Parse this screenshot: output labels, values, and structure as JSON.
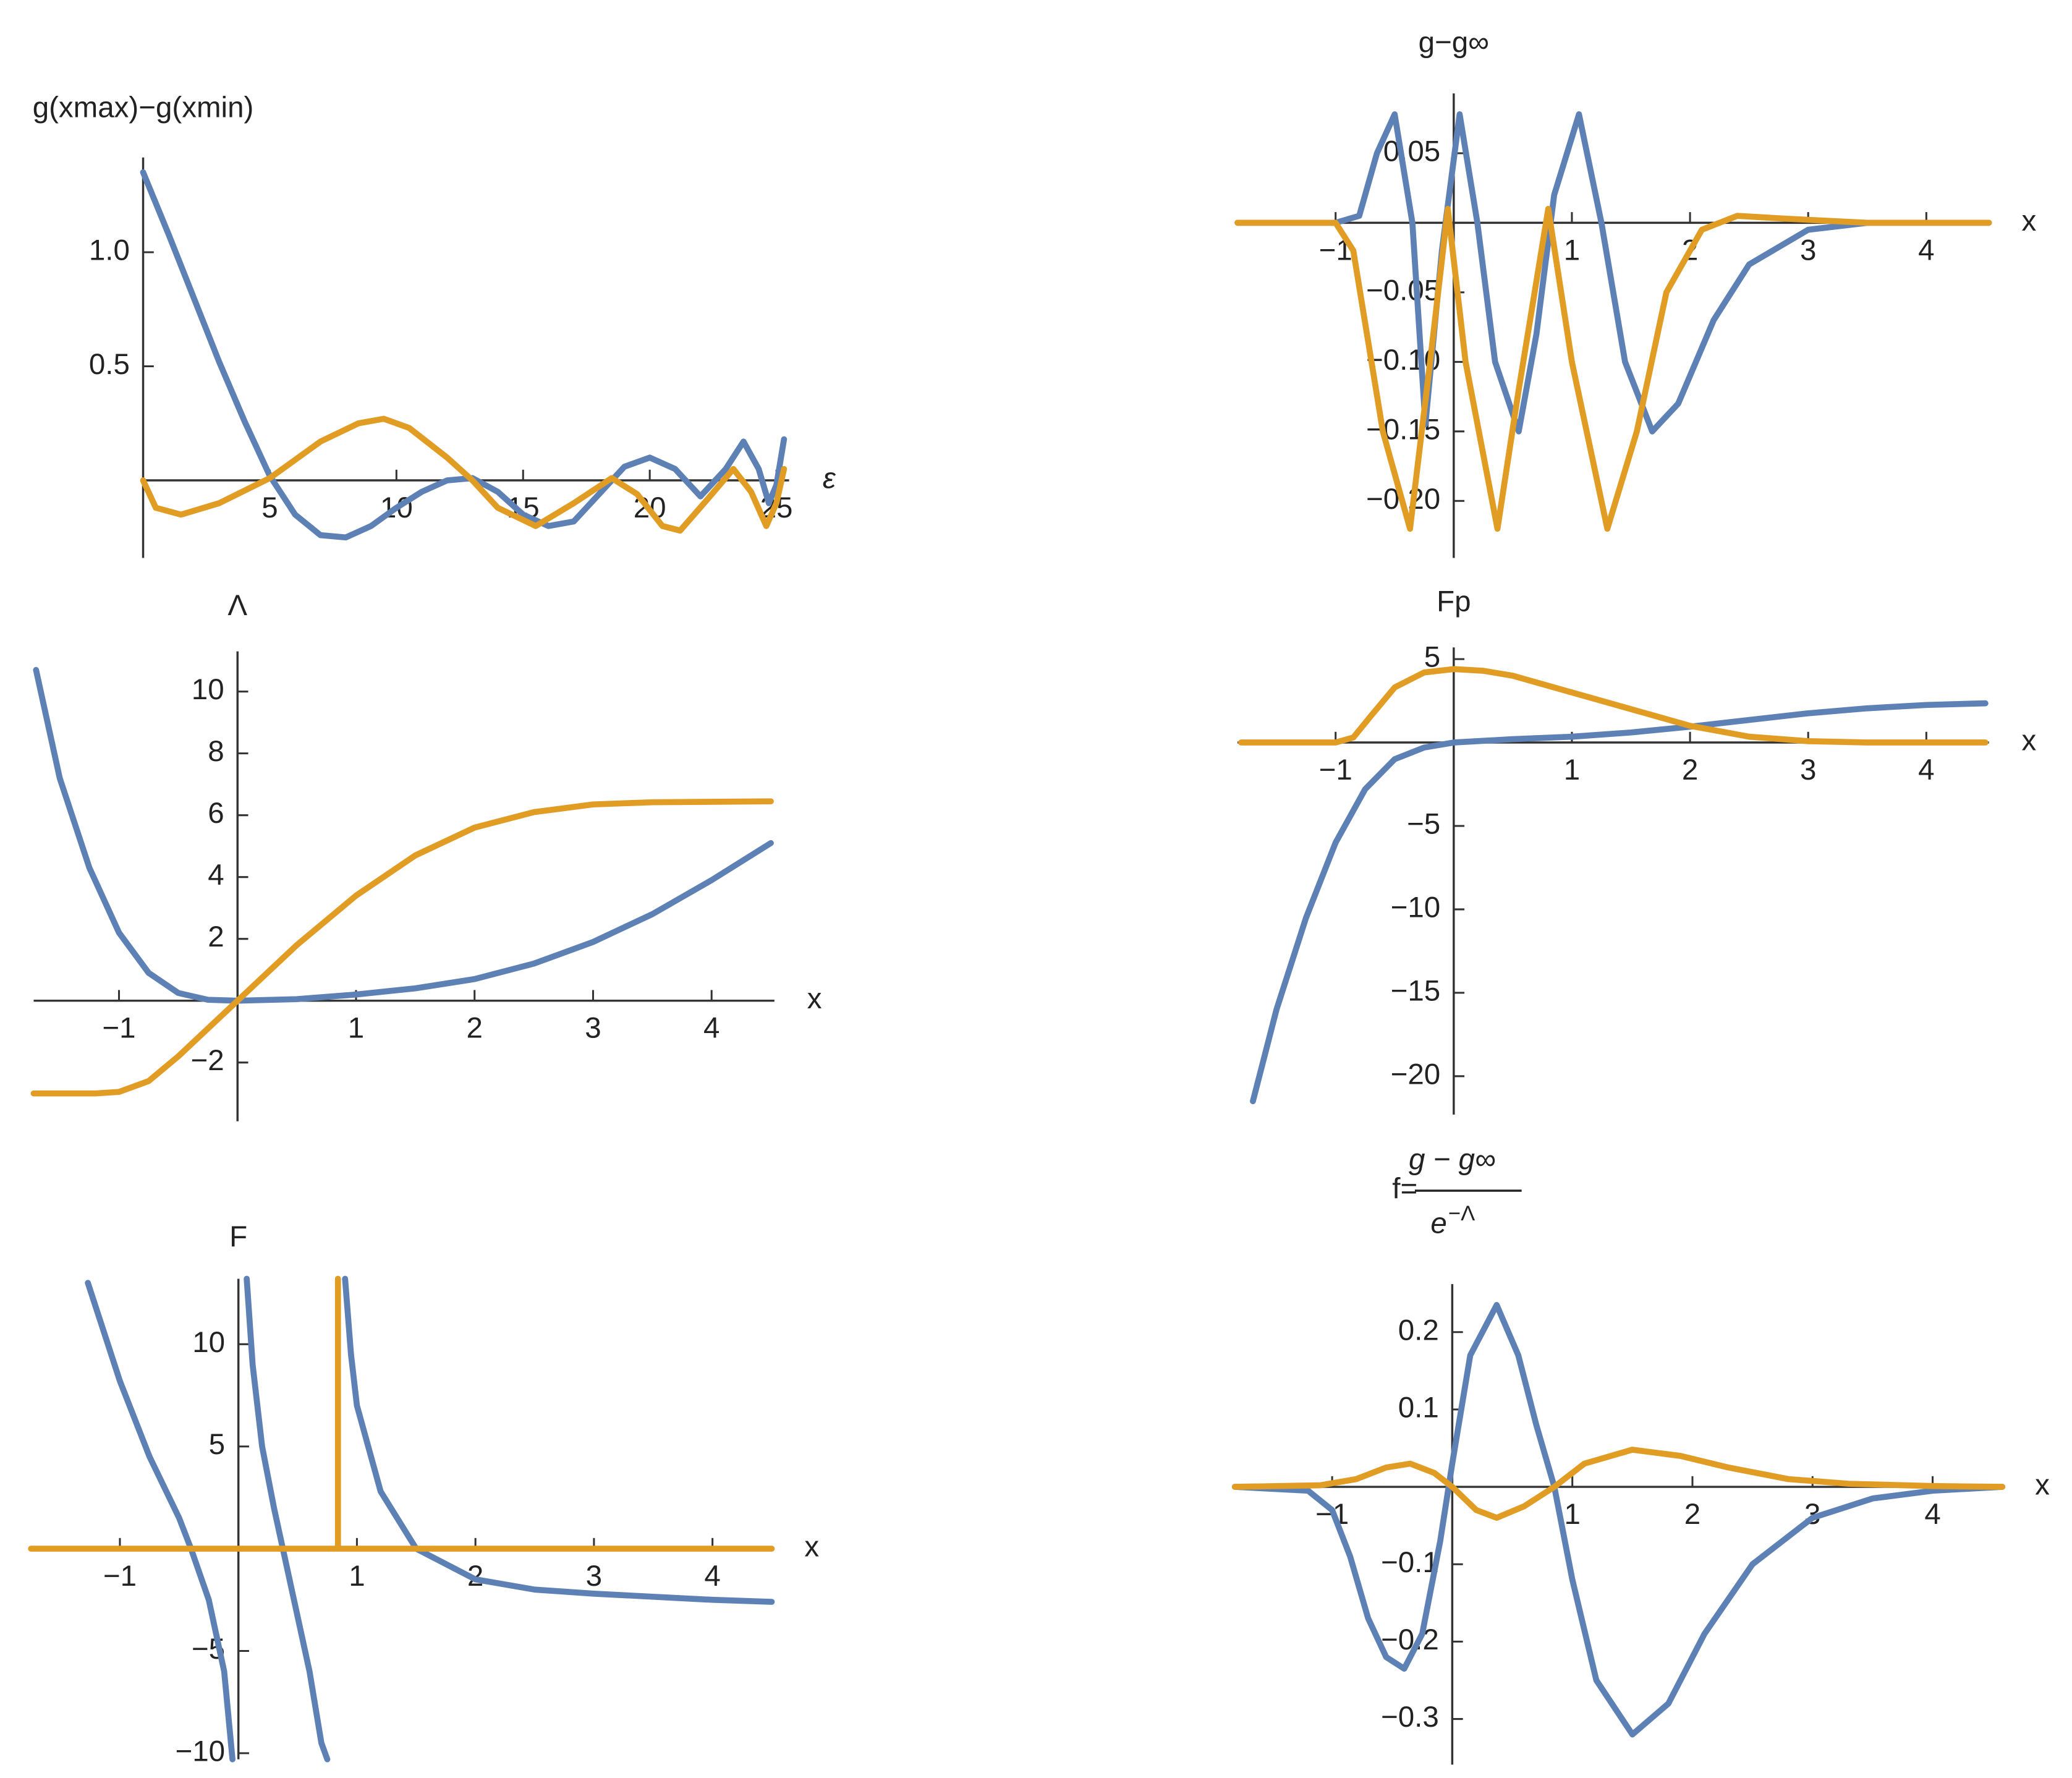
{
  "chart_data": [
    {
      "type": "line",
      "ylabel": "g(xmax)−g(xmin)",
      "xlabel": "ε",
      "xlim": [
        0,
        25.5
      ],
      "ylim": [
        -0.34,
        1.415
      ],
      "xticks": [
        5,
        10,
        15,
        20,
        25
      ],
      "yticks": [
        0.5,
        {
          "value": 1,
          "label": "1.0"
        }
      ],
      "series": [
        {
          "color": "#5e81b5",
          "x": [
            0,
            1,
            2,
            3,
            4,
            5,
            6,
            7,
            8,
            9,
            10,
            11,
            12,
            13,
            14,
            15,
            16,
            17,
            18,
            19,
            20,
            21,
            22,
            23,
            23.7,
            24.3,
            24.7,
            25,
            25.3
          ],
          "values": [
            1.35,
            1.08,
            0.8,
            0.52,
            0.26,
            0.02,
            -0.15,
            -0.24,
            -0.25,
            -0.2,
            -0.12,
            -0.05,
            0,
            0.01,
            -0.05,
            -0.15,
            -0.2,
            -0.18,
            -0.06,
            0.06,
            0.1,
            0.05,
            -0.07,
            0.05,
            0.17,
            0.05,
            -0.1,
            -0.02,
            0.18
          ]
        },
        {
          "color": "#e19c24",
          "x": [
            0,
            0.5,
            1.5,
            3,
            5,
            7,
            8.5,
            9.5,
            10.5,
            12,
            13,
            14,
            15.5,
            17,
            18.5,
            19.5,
            20.5,
            21.2,
            22.3,
            23.3,
            24,
            24.6,
            25,
            25.3
          ],
          "values": [
            0,
            -0.12,
            -0.15,
            -0.1,
            0.01,
            0.17,
            0.25,
            0.27,
            0.23,
            0.1,
            0,
            -0.12,
            -0.2,
            -0.1,
            0.01,
            -0.06,
            -0.2,
            -0.22,
            -0.08,
            0.05,
            -0.05,
            -0.2,
            -0.1,
            0.05
          ]
        }
      ]
    },
    {
      "type": "line",
      "ylabel": "g−g∞",
      "xlabel": "x",
      "xlim": [
        -1.83,
        4.53
      ],
      "ylim": [
        -0.241,
        0.093
      ],
      "xticks": [
        {
          "value": -1,
          "label": "−1"
        },
        1,
        2,
        3,
        4
      ],
      "yticks": [
        0.05,
        {
          "value": -0.05,
          "label": "−0.05"
        },
        {
          "value": -0.1,
          "label": "−0.10"
        },
        {
          "value": -0.15,
          "label": "−0.15"
        },
        {
          "value": -0.2,
          "label": "−0.20"
        }
      ],
      "series": [
        {
          "color": "#5e81b5",
          "x": [
            -1.83,
            -1,
            -0.8,
            -0.65,
            -0.5,
            -0.35,
            -0.24,
            -0.1,
            0.05,
            0.2,
            0.35,
            0.55,
            0.7,
            0.85,
            1.06,
            1.25,
            1.45,
            1.68,
            1.9,
            2.2,
            2.5,
            3,
            3.5,
            4.53
          ],
          "values": [
            0,
            0,
            0.005,
            0.05,
            0.078,
            0,
            -0.145,
            -0.02,
            0.078,
            0,
            -0.1,
            -0.15,
            -0.08,
            0.02,
            0.078,
            0,
            -0.1,
            -0.15,
            -0.13,
            -0.07,
            -0.03,
            -0.005,
            0,
            0
          ]
        },
        {
          "color": "#e19c24",
          "x": [
            -1.83,
            -1,
            -0.85,
            -0.6,
            -0.37,
            -0.2,
            -0.05,
            0.1,
            0.37,
            0.55,
            0.8,
            1,
            1.3,
            1.55,
            1.8,
            2.1,
            2.4,
            2.8,
            3.5,
            4.53
          ],
          "values": [
            0,
            0,
            -0.02,
            -0.15,
            -0.22,
            -0.1,
            0.01,
            -0.1,
            -0.22,
            -0.12,
            0.01,
            -0.1,
            -0.22,
            -0.15,
            -0.05,
            -0.005,
            0.005,
            0.003,
            0,
            0
          ]
        }
      ]
    },
    {
      "type": "line",
      "ylabel": "Λ",
      "xlabel": "x",
      "xlim": [
        -1.72,
        4.53
      ],
      "ylim": [
        -3.9,
        11.3
      ],
      "xticks": [
        {
          "value": -1,
          "label": "−1"
        },
        1,
        2,
        3,
        4
      ],
      "yticks": [
        {
          "value": -2,
          "label": "−2"
        },
        2,
        4,
        6,
        8,
        10
      ],
      "series": [
        {
          "color": "#5e81b5",
          "x": [
            -1.7,
            -1.5,
            -1.25,
            -1,
            -0.75,
            -0.5,
            -0.25,
            0,
            0.5,
            1,
            1.5,
            2,
            2.5,
            3,
            3.5,
            4,
            4.5
          ],
          "values": [
            10.7,
            7.2,
            4.3,
            2.2,
            0.9,
            0.25,
            0.03,
            0,
            0.05,
            0.2,
            0.4,
            0.7,
            1.2,
            1.9,
            2.8,
            3.9,
            5.1
          ]
        },
        {
          "color": "#e19c24",
          "x": [
            -1.72,
            -1.2,
            -1,
            -0.75,
            -0.5,
            -0.25,
            0,
            0.5,
            1,
            1.5,
            2,
            2.5,
            3,
            3.5,
            4.5
          ],
          "values": [
            -3,
            -3,
            -2.95,
            -2.6,
            -1.8,
            -0.9,
            0,
            1.8,
            3.4,
            4.7,
            5.6,
            6.1,
            6.35,
            6.42,
            6.45
          ]
        }
      ]
    },
    {
      "type": "line",
      "ylabel": "Fp",
      "xlabel": "x",
      "xlim": [
        -1.83,
        4.53
      ],
      "ylim": [
        -22.3,
        5.7
      ],
      "xticks": [
        {
          "value": -1,
          "label": "−1"
        },
        1,
        2,
        3,
        4
      ],
      "yticks": [
        5,
        {
          "value": -5,
          "label": "−5"
        },
        {
          "value": -10,
          "label": "−10"
        },
        {
          "value": -15,
          "label": "−15"
        },
        {
          "value": -20,
          "label": "−20"
        }
      ],
      "series": [
        {
          "color": "#5e81b5",
          "x": [
            -1.7,
            -1.5,
            -1.25,
            -1,
            -0.75,
            -0.5,
            -0.25,
            0,
            0.5,
            1,
            1.5,
            2,
            2.5,
            3,
            3.5,
            4,
            4.5
          ],
          "values": [
            -21.5,
            -16,
            -10.5,
            -6,
            -2.8,
            -1,
            -0.3,
            0,
            0.2,
            0.35,
            0.6,
            0.95,
            1.35,
            1.75,
            2.05,
            2.25,
            2.35
          ]
        },
        {
          "color": "#e19c24",
          "x": [
            -1.8,
            -1,
            -0.85,
            -0.7,
            -0.5,
            -0.25,
            0,
            0.25,
            0.5,
            1,
            1.5,
            2,
            2.5,
            3,
            3.5,
            4.5
          ],
          "values": [
            0,
            0,
            0.3,
            1.6,
            3.3,
            4.2,
            4.4,
            4.3,
            4,
            3,
            2,
            1,
            0.35,
            0.08,
            0,
            0
          ]
        }
      ]
    },
    {
      "type": "line",
      "ylabel": "F",
      "xlabel": "x",
      "xlim": [
        -1.75,
        4.5
      ],
      "ylim": [
        -10.3,
        13.2
      ],
      "xticks": [
        {
          "value": -1,
          "label": "−1"
        },
        1,
        2,
        3,
        4
      ],
      "yticks": [
        {
          "value": -10,
          "label": "−10"
        },
        {
          "value": -5,
          "label": "−5"
        },
        5,
        10
      ],
      "series": [
        {
          "color": "#5e81b5",
          "x": [
            -1.27,
            -1,
            -0.75,
            -0.5,
            -0.4,
            -0.25,
            -0.12,
            -0.05,
            0,
            0.07,
            0.12,
            0.2,
            0.3,
            0.45,
            0.6,
            0.7,
            0.75,
            0.85,
            0.9,
            0.95,
            1,
            1.2,
            1.5,
            2,
            2.5,
            3,
            4,
            4.5
          ],
          "values": [
            13,
            8.2,
            4.5,
            1.5,
            0,
            -2.5,
            -6,
            -10.3,
            null,
            13.2,
            9,
            5,
            2,
            -2,
            -6,
            -9.5,
            -10.3,
            null,
            13.2,
            9.5,
            7,
            2.8,
            0,
            -1.5,
            -2,
            -2.2,
            -2.5,
            -2.6
          ]
        },
        {
          "color": "#e19c24",
          "x": [
            -1.75,
            0.84,
            0.84,
            0.84,
            4.5
          ],
          "values": [
            0,
            0,
            13.2,
            0,
            0
          ]
        }
      ]
    },
    {
      "type": "line",
      "ylabel": {
        "prefix": "f=",
        "numerator": "g − g∞",
        "denominator_base": "e",
        "denominator_exponent": "−Λ"
      },
      "xlabel": "x",
      "xlim": [
        -1.81,
        4.58
      ],
      "ylim": [
        -0.359,
        0.262
      ],
      "xticks": [
        {
          "value": -1,
          "label": "−1"
        },
        1,
        2,
        3,
        4
      ],
      "yticks": [
        0.2,
        0.1,
        {
          "value": -0.1,
          "label": "−0.1"
        },
        {
          "value": -0.2,
          "label": "−0.2"
        },
        {
          "value": -0.3,
          "label": "−0.3"
        }
      ],
      "series": [
        {
          "color": "#5e81b5",
          "x": [
            -1.81,
            -1.2,
            -1,
            -0.85,
            -0.7,
            -0.55,
            -0.4,
            -0.25,
            -0.1,
            0,
            0.15,
            0.37,
            0.55,
            0.7,
            0.85,
            1,
            1.2,
            1.5,
            1.8,
            2.1,
            2.5,
            3,
            3.5,
            4,
            4.58
          ],
          "values": [
            0,
            -0.005,
            -0.03,
            -0.09,
            -0.17,
            -0.22,
            -0.235,
            -0.19,
            -0.07,
            0.03,
            0.17,
            0.235,
            0.17,
            0.08,
            0,
            -0.12,
            -0.25,
            -0.32,
            -0.28,
            -0.19,
            -0.1,
            -0.04,
            -0.015,
            -0.005,
            0
          ]
        },
        {
          "color": "#e19c24",
          "x": [
            -1.81,
            -1.1,
            -0.8,
            -0.55,
            -0.35,
            -0.15,
            0,
            0.2,
            0.37,
            0.6,
            0.85,
            1.1,
            1.5,
            1.9,
            2.3,
            2.8,
            3.3,
            4,
            4.58
          ],
          "values": [
            0,
            0.002,
            0.01,
            0.025,
            0.03,
            0.018,
            0,
            -0.03,
            -0.04,
            -0.025,
            0,
            0.03,
            0.048,
            0.04,
            0.025,
            0.01,
            0.004,
            0.001,
            0
          ]
        }
      ]
    }
  ]
}
